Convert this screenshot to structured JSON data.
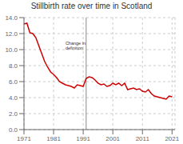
{
  "chart_data": {
    "type": "line",
    "title": "Stillbirth rate over time in Scotland",
    "x": [
      1971,
      1972,
      1973,
      1974,
      1975,
      1976,
      1977,
      1978,
      1979,
      1980,
      1981,
      1982,
      1983,
      1984,
      1985,
      1986,
      1987,
      1988,
      1989,
      1990,
      1991,
      1992,
      1993,
      1994,
      1995,
      1996,
      1997,
      1998,
      1999,
      2000,
      2001,
      2002,
      2003,
      2004,
      2005,
      2006,
      2007,
      2008,
      2009,
      2010,
      2011,
      2012,
      2013,
      2014,
      2015,
      2016,
      2017,
      2018,
      2019,
      2020,
      2021
    ],
    "values": [
      13.2,
      13.3,
      12.1,
      12.0,
      11.5,
      10.5,
      9.5,
      8.5,
      7.8,
      7.2,
      6.9,
      6.5,
      6.0,
      5.8,
      5.6,
      5.5,
      5.4,
      5.2,
      5.6,
      5.5,
      5.4,
      6.4,
      6.6,
      6.5,
      6.2,
      5.8,
      5.6,
      5.7,
      5.4,
      5.5,
      5.8,
      5.6,
      5.8,
      5.5,
      5.8,
      5.0,
      5.1,
      5.2,
      5.0,
      5.1,
      4.8,
      4.7,
      5.0,
      4.5,
      4.2,
      4.1,
      4.0,
      3.9,
      3.8,
      4.2,
      4.1
    ],
    "color": "#cc0000",
    "vline": {
      "x": 1992,
      "color": "#888888"
    },
    "annotations": [
      {
        "text": "Change in\ndefinition",
        "x": 1985,
        "y": 11.2
      }
    ],
    "xlim": [
      1971,
      2022
    ],
    "ylim": [
      0.0,
      14.0
    ],
    "xticks": [
      1971,
      1981,
      1991,
      2001,
      2011,
      2021
    ],
    "yticks": [
      {
        "value": 0,
        "label": "0.0"
      },
      {
        "value": 2,
        "label": "2.0"
      },
      {
        "value": 4,
        "label": "4.0"
      },
      {
        "value": 6,
        "label": "6.0"
      },
      {
        "value": 8,
        "label": "8.0"
      },
      {
        "value": 10,
        "label": "10.0"
      },
      {
        "value": 12,
        "label": "12.0"
      },
      {
        "value": 14,
        "label": "14.0"
      }
    ],
    "grid": true
  }
}
